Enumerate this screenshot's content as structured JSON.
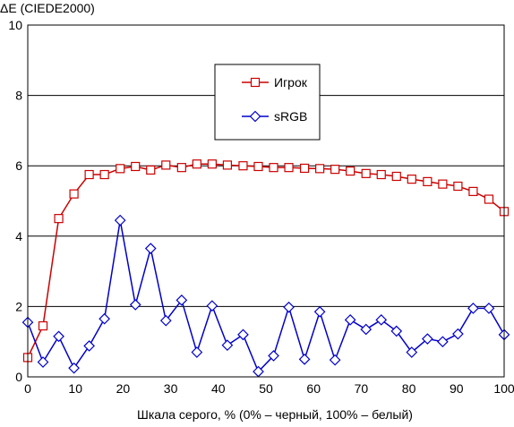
{
  "chart_data": {
    "type": "line",
    "ylabel": "ΔE (CIEDE2000)",
    "xlabel": "Шкала серого, % (0% – черный, 100% – белый)",
    "xlim": [
      0,
      100
    ],
    "ylim": [
      0,
      10
    ],
    "xticks": [
      0,
      10,
      20,
      30,
      40,
      50,
      60,
      70,
      80,
      90,
      100
    ],
    "yticks": [
      0,
      2,
      4,
      6,
      8,
      10
    ],
    "grid": "horizontal",
    "legend_placement": "top-center",
    "series": [
      {
        "name": "Игрок",
        "color": "#cc0000",
        "marker": "square",
        "x": [
          0,
          3.2,
          6.5,
          9.7,
          12.9,
          16.1,
          19.4,
          22.6,
          25.8,
          29.0,
          32.3,
          35.5,
          38.7,
          41.9,
          45.2,
          48.4,
          51.6,
          54.8,
          58.1,
          61.3,
          64.5,
          67.7,
          71.0,
          74.2,
          77.4,
          80.6,
          83.9,
          87.1,
          90.3,
          93.5,
          96.8,
          100
        ],
        "y": [
          0.55,
          1.45,
          4.5,
          5.2,
          5.75,
          5.75,
          5.92,
          5.98,
          5.88,
          6.02,
          5.95,
          6.05,
          6.05,
          6.02,
          6.0,
          5.98,
          5.95,
          5.95,
          5.93,
          5.92,
          5.9,
          5.85,
          5.78,
          5.75,
          5.7,
          5.62,
          5.55,
          5.48,
          5.42,
          5.27,
          5.05,
          4.7
        ]
      },
      {
        "name": "sRGB",
        "color": "#0000cc",
        "marker": "diamond",
        "x": [
          0,
          3.2,
          6.5,
          9.7,
          12.9,
          16.1,
          19.4,
          22.6,
          25.8,
          29.0,
          32.3,
          35.5,
          38.7,
          41.9,
          45.2,
          48.4,
          51.6,
          54.8,
          58.1,
          61.3,
          64.5,
          67.7,
          71.0,
          74.2,
          77.4,
          80.6,
          83.9,
          87.1,
          90.3,
          93.5,
          96.8,
          100
        ],
        "y": [
          1.55,
          0.42,
          1.15,
          0.25,
          0.88,
          1.65,
          4.45,
          2.05,
          3.65,
          1.6,
          2.18,
          0.7,
          2.02,
          0.9,
          1.2,
          0.15,
          0.6,
          1.98,
          0.5,
          1.85,
          0.48,
          1.62,
          1.35,
          1.62,
          1.3,
          0.7,
          1.08,
          1.0,
          1.22,
          1.95,
          1.95,
          1.2
        ]
      }
    ]
  }
}
